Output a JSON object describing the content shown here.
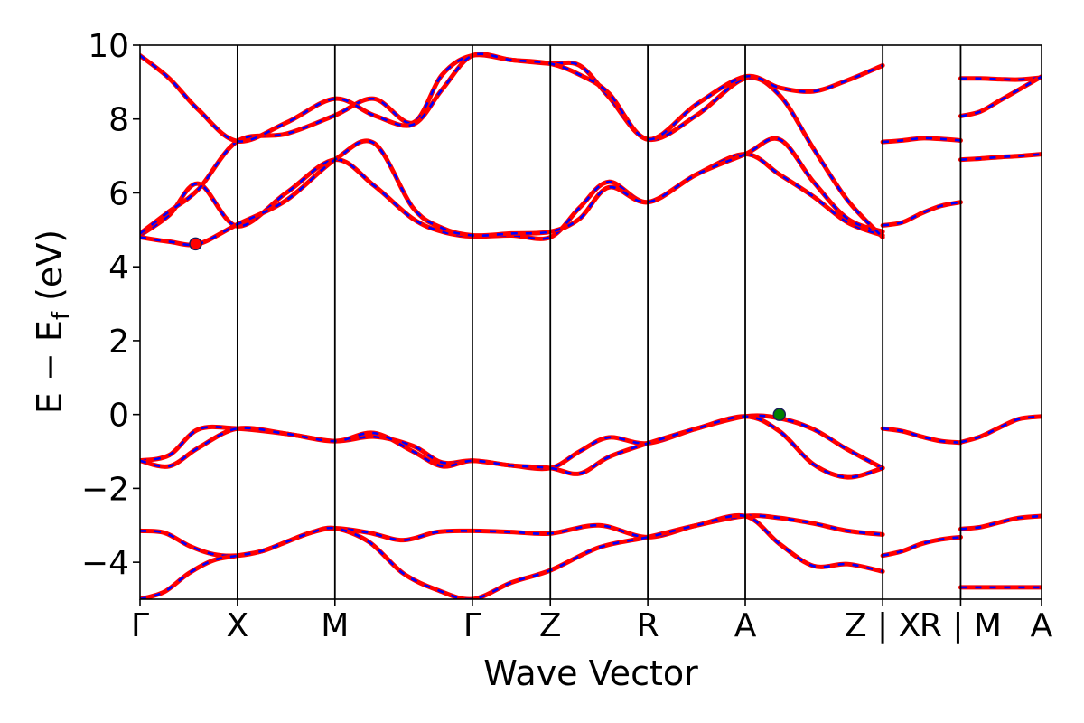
{
  "chart_data": {
    "type": "line",
    "title": "",
    "xlabel": "Wave Vector",
    "ylabel": "E − E_f (eV)",
    "ylabel_main": "E  −  E",
    "ylabel_sub": "f",
    "ylabel_tail": " (eV)",
    "ylim": [
      -5,
      10
    ],
    "y_ticks": [
      -4,
      -2,
      0,
      2,
      4,
      6,
      8,
      10
    ],
    "y_tick_labels": [
      "−4",
      "−2",
      "0",
      "2",
      "4",
      "6",
      "8",
      "10"
    ],
    "x_range": [
      0,
      9.25
    ],
    "kpoints": [
      {
        "label": "Γ",
        "x": 0
      },
      {
        "label": "X",
        "x": 1.0
      },
      {
        "label": "M",
        "x": 2.0
      },
      {
        "label": "Γ",
        "x": 3.41
      },
      {
        "label": "Z",
        "x": 4.21
      },
      {
        "label": "R",
        "x": 5.21
      },
      {
        "label": "A",
        "x": 6.21
      },
      {
        "label": "Z | X",
        "x": 7.62
      },
      {
        "label": "R | M",
        "x": 8.42
      },
      {
        "label": "A",
        "x": 9.25
      }
    ],
    "segments": [
      {
        "x_start": 0,
        "x_end": 7.62
      },
      {
        "x_start": 7.62,
        "x_end": 8.42
      },
      {
        "x_start": 8.42,
        "x_end": 9.25
      }
    ],
    "colors": {
      "spin_up": "#ff0000",
      "spin_down": "#0000ff",
      "cbm": "#ff0000",
      "vbm": "#008000"
    },
    "bands": [
      {
        "x": [
          0,
          0.25,
          0.5,
          0.75,
          1.0,
          1.25,
          1.5,
          1.75,
          2.0,
          2.35,
          2.7,
          3.05,
          3.41,
          3.81,
          4.21,
          4.71,
          5.21,
          5.71,
          6.21,
          6.56,
          6.91,
          7.26,
          7.62
        ],
        "y": [
          -3.15,
          -3.2,
          -3.55,
          -3.78,
          -3.82,
          -3.7,
          -3.45,
          -3.2,
          -3.08,
          -3.2,
          -3.4,
          -3.18,
          -3.15,
          -3.18,
          -3.22,
          -3.0,
          -3.32,
          -3.0,
          -2.75,
          -2.8,
          -2.95,
          -3.15,
          -3.25
        ]
      },
      {
        "x": [
          0,
          0.25,
          0.5,
          0.75,
          1.0,
          1.25,
          1.5,
          1.75,
          2.0,
          2.35,
          2.7,
          3.05,
          3.41,
          3.81,
          4.21,
          4.71,
          5.21,
          5.71,
          6.21,
          6.56,
          6.91,
          7.26,
          7.62
        ],
        "y": [
          -5.0,
          -4.8,
          -4.3,
          -3.95,
          -3.82,
          -3.7,
          -3.45,
          -3.2,
          -3.08,
          -3.45,
          -4.3,
          -4.75,
          -5.0,
          -4.55,
          -4.22,
          -3.6,
          -3.32,
          -3.0,
          -2.75,
          -3.5,
          -4.1,
          -4.05,
          -4.25
        ]
      },
      {
        "x": [
          0,
          0.3,
          0.6,
          1.0,
          1.5,
          2.0,
          2.4,
          2.8,
          3.1,
          3.41,
          3.81,
          4.21,
          4.51,
          4.81,
          5.21,
          5.71,
          6.21,
          6.56,
          6.91,
          7.26,
          7.62
        ],
        "y": [
          -1.25,
          -1.1,
          -0.4,
          -0.38,
          -0.52,
          -0.72,
          -0.6,
          -0.85,
          -1.3,
          -1.25,
          -1.38,
          -1.45,
          -1.0,
          -0.62,
          -0.78,
          -0.38,
          -0.05,
          -0.1,
          -0.4,
          -0.95,
          -1.45
        ]
      },
      {
        "x": [
          0,
          0.3,
          0.6,
          1.0,
          1.5,
          2.0,
          2.4,
          2.8,
          3.1,
          3.41,
          3.81,
          4.21,
          4.51,
          4.81,
          5.21,
          5.71,
          6.21,
          6.56,
          6.91,
          7.26,
          7.62
        ],
        "y": [
          -1.25,
          -1.4,
          -0.9,
          -0.38,
          -0.52,
          -0.72,
          -0.5,
          -1.0,
          -1.4,
          -1.25,
          -1.38,
          -1.45,
          -1.6,
          -1.15,
          -0.78,
          -0.38,
          -0.05,
          -0.45,
          -1.35,
          -1.7,
          -1.45
        ]
      },
      {
        "x": [
          0,
          0.3,
          0.6,
          1.0,
          1.5,
          2.0,
          2.4,
          2.8,
          3.1,
          3.41,
          3.81,
          4.21,
          4.51,
          4.81,
          5.21,
          5.71,
          6.21,
          6.56,
          6.91,
          7.26,
          7.62
        ],
        "y": [
          4.85,
          5.4,
          6.25,
          5.1,
          6.0,
          6.9,
          6.2,
          5.3,
          4.95,
          4.82,
          4.85,
          4.8,
          5.6,
          6.3,
          5.75,
          6.5,
          7.05,
          6.5,
          5.9,
          5.2,
          4.85
        ]
      },
      {
        "x": [
          0,
          0.3,
          0.6,
          1.0,
          1.5,
          2.0,
          2.4,
          2.8,
          3.1,
          3.41,
          3.81,
          4.21,
          4.51,
          4.81,
          5.21,
          5.71,
          6.21,
          6.56,
          6.91,
          7.26,
          7.62
        ],
        "y": [
          4.8,
          4.68,
          4.62,
          5.15,
          5.8,
          6.9,
          7.35,
          5.6,
          5.05,
          4.85,
          4.9,
          4.95,
          5.3,
          6.15,
          5.75,
          6.5,
          7.05,
          7.45,
          6.3,
          5.3,
          4.95
        ]
      },
      {
        "x": [
          0,
          0.3,
          0.6,
          1.0,
          1.5,
          2.0,
          2.4,
          2.8,
          3.1,
          3.41,
          3.81,
          4.21,
          4.51,
          4.81,
          5.21,
          5.71,
          6.21,
          6.56,
          6.91,
          7.26,
          7.62
        ],
        "y": [
          4.9,
          5.5,
          6.1,
          7.4,
          7.6,
          8.1,
          8.55,
          7.9,
          9.2,
          9.72,
          9.6,
          9.5,
          9.45,
          8.6,
          7.45,
          8.1,
          9.1,
          8.65,
          7.2,
          5.8,
          4.8
        ]
      },
      {
        "x": [
          0,
          0.3,
          0.6,
          1.0,
          1.5,
          2.0,
          2.4,
          2.8,
          3.1,
          3.41,
          3.81,
          4.21,
          4.51,
          4.81,
          5.21,
          5.71,
          6.21,
          6.56,
          6.91,
          7.26,
          7.62
        ],
        "y": [
          9.72,
          9.1,
          8.25,
          7.4,
          7.9,
          8.55,
          8.1,
          7.85,
          8.8,
          9.72,
          9.6,
          9.5,
          9.2,
          8.7,
          7.45,
          8.4,
          9.15,
          8.85,
          8.75,
          9.05,
          9.45
        ]
      },
      {
        "x": [
          7.62,
          7.82,
          8.02,
          8.22,
          8.42
        ],
        "y": [
          7.38,
          7.42,
          7.48,
          7.46,
          7.42
        ]
      },
      {
        "x": [
          7.62,
          7.82,
          8.02,
          8.22,
          8.42
        ],
        "y": [
          5.12,
          5.2,
          5.45,
          5.65,
          5.75
        ]
      },
      {
        "x": [
          7.62,
          7.82,
          8.02,
          8.22,
          8.42
        ],
        "y": [
          -0.38,
          -0.45,
          -0.6,
          -0.72,
          -0.76
        ]
      },
      {
        "x": [
          7.62,
          7.82,
          8.02,
          8.22,
          8.42
        ],
        "y": [
          -3.82,
          -3.7,
          -3.5,
          -3.38,
          -3.32
        ]
      },
      {
        "x": [
          8.42,
          8.62,
          8.82,
          9.02,
          9.25
        ],
        "y": [
          9.1,
          9.1,
          9.08,
          9.07,
          9.12
        ]
      },
      {
        "x": [
          8.42,
          8.62,
          8.82,
          9.02,
          9.25
        ],
        "y": [
          8.08,
          8.2,
          8.5,
          8.8,
          9.15
        ]
      },
      {
        "x": [
          8.42,
          8.62,
          8.82,
          9.02,
          9.25
        ],
        "y": [
          6.9,
          6.93,
          6.97,
          7.0,
          7.05
        ]
      },
      {
        "x": [
          8.42,
          8.62,
          8.82,
          9.02,
          9.25
        ],
        "y": [
          -0.75,
          -0.6,
          -0.35,
          -0.12,
          -0.05
        ]
      },
      {
        "x": [
          8.42,
          8.62,
          8.82,
          9.02,
          9.25
        ],
        "y": [
          -3.1,
          -3.05,
          -2.92,
          -2.8,
          -2.75
        ]
      },
      {
        "x": [
          8.42,
          8.62,
          8.82,
          9.02,
          9.25
        ],
        "y": [
          -4.68,
          -4.68,
          -4.68,
          -4.68,
          -4.68
        ]
      }
    ],
    "markers": [
      {
        "name": "cbm",
        "x": 0.57,
        "y": 4.62
      },
      {
        "name": "vbm",
        "x": 6.56,
        "y": 0.0
      }
    ]
  }
}
